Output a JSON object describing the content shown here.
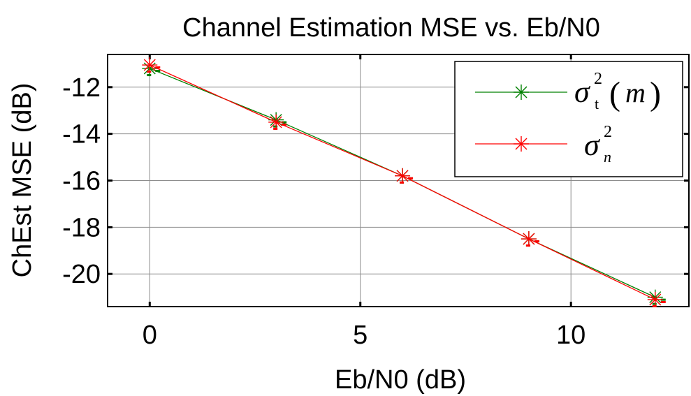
{
  "chart_data": {
    "type": "line",
    "title": "Channel Estimation MSE vs. Eb/N0",
    "xlabel": "Eb/N0 (dB)",
    "ylabel": "ChEst MSE (dB)",
    "xlim": [
      -1,
      12.8
    ],
    "ylim": [
      -21.4,
      -10.6
    ],
    "xticks": [
      0,
      5,
      10
    ],
    "yticks": [
      -12,
      -14,
      -16,
      -18,
      -20
    ],
    "grid": true,
    "legend_position": "top-right",
    "x": [
      0,
      3,
      6,
      9,
      12
    ],
    "series": [
      {
        "name": "σt²(m)",
        "color": "#008000",
        "values": [
          -11.2,
          -13.4,
          -15.8,
          -18.5,
          -21.0
        ]
      },
      {
        "name": "σn²",
        "color": "#ff0000",
        "values": [
          -11.05,
          -13.5,
          -15.8,
          -18.5,
          -21.1
        ]
      }
    ],
    "legend": {
      "entry1": {
        "sym": "σ",
        "sub": "t",
        "sup": "2",
        "lparen": "(",
        "arg": "m",
        "rparen": ")"
      },
      "entry2": {
        "sym": "σ",
        "sub": "n",
        "sup": "2"
      }
    }
  }
}
